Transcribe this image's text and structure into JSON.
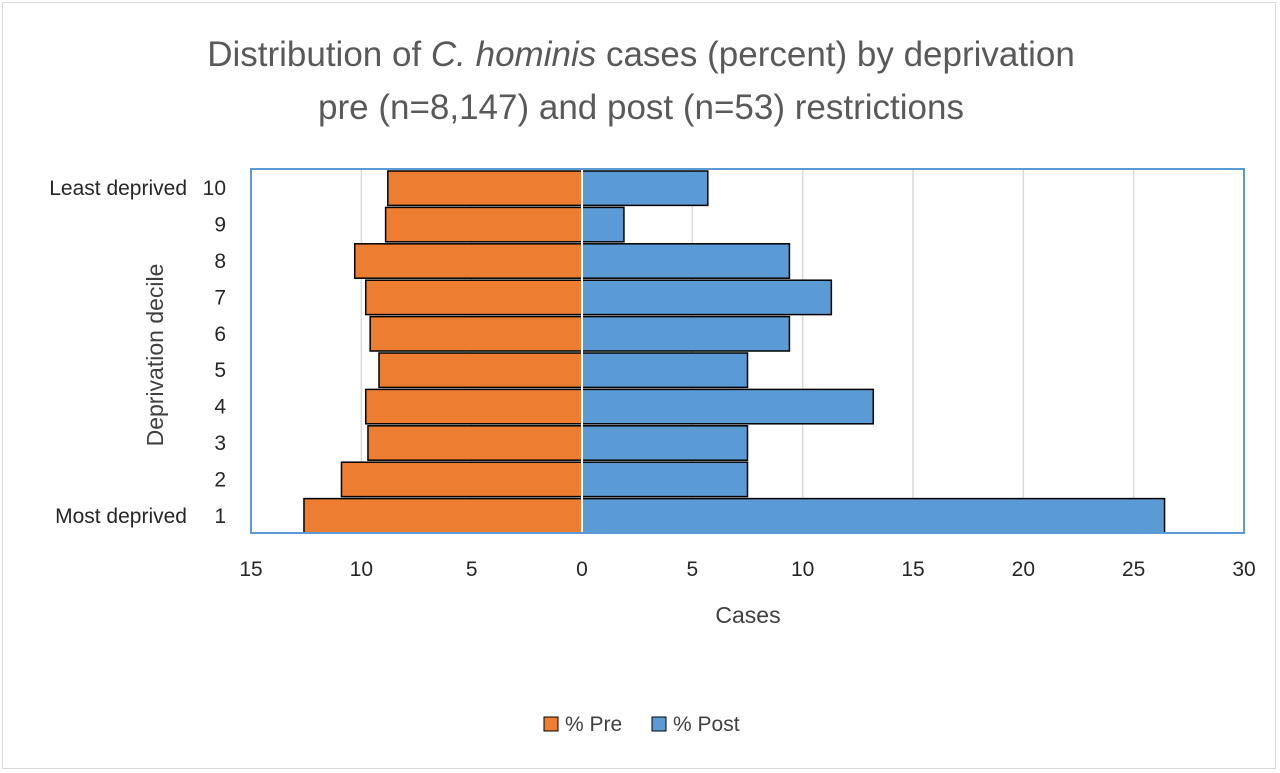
{
  "chart_data": {
    "type": "bar",
    "orientation": "horizontal-butterfly",
    "title": {
      "line1_prefix": "Distribution of ",
      "line1_italic": "C. hominis",
      "line1_suffix": " cases (percent) by deprivation",
      "line2": "pre (n=8,147) and post (n=53) restrictions"
    },
    "xlabel": "Cases",
    "ylabel": "Deprivation decile",
    "categories": [
      "1",
      "2",
      "3",
      "4",
      "5",
      "6",
      "7",
      "8",
      "9",
      "10"
    ],
    "category_annotations": {
      "1": "Most deprived",
      "10": "Least deprived"
    },
    "xlim": [
      -15,
      30
    ],
    "xticks": [
      -15,
      -10,
      -5,
      0,
      5,
      10,
      15,
      20,
      25,
      30
    ],
    "xtick_labels": [
      "15",
      "10",
      "5",
      "0",
      "5",
      "10",
      "15",
      "20",
      "25",
      "30"
    ],
    "series": [
      {
        "name": "% Pre",
        "color": "#ED7D31",
        "values": [
          12.6,
          10.9,
          9.7,
          9.8,
          9.2,
          9.6,
          9.8,
          10.3,
          8.9,
          8.8
        ]
      },
      {
        "name": "% Post",
        "color": "#5B9BD5",
        "values": [
          26.4,
          7.5,
          7.5,
          13.2,
          7.5,
          9.4,
          11.3,
          9.4,
          1.9,
          5.7
        ]
      }
    ],
    "grid": "vertical",
    "legend": "bottom"
  },
  "colors": {
    "plot_border": "#5B9BD5",
    "gridline": "#d9d9d9",
    "bar_outline": "#000000",
    "zero_line": "#ffffff"
  }
}
